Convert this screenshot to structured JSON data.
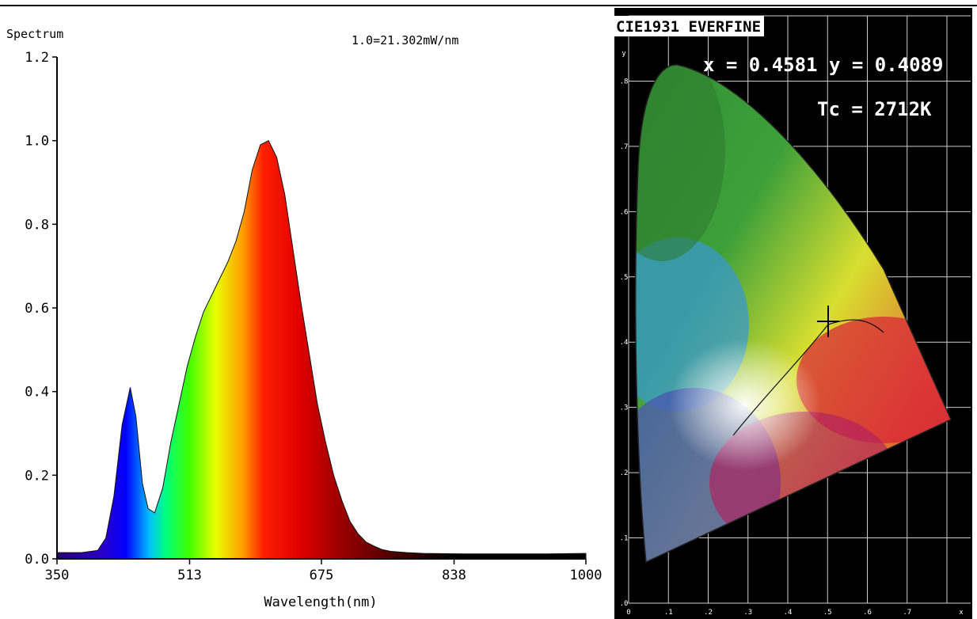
{
  "chart_data": [
    {
      "type": "area",
      "title": "Spectrum",
      "annotation": "1.0=21.302mW/nm",
      "xlabel": "Wavelength(nm)",
      "ylabel": "",
      "xlim": [
        350,
        1000
      ],
      "ylim": [
        0,
        1.2
      ],
      "x_ticks": [
        "350",
        "513",
        "675",
        "838",
        "1000"
      ],
      "y_ticks": [
        "0.0",
        "0.2",
        "0.4",
        "0.6",
        "0.8",
        "1.0",
        "1.2"
      ],
      "x": [
        350,
        380,
        400,
        410,
        420,
        430,
        440,
        447,
        455,
        462,
        470,
        480,
        490,
        500,
        510,
        520,
        530,
        540,
        550,
        560,
        570,
        580,
        590,
        600,
        610,
        620,
        630,
        640,
        650,
        660,
        670,
        680,
        690,
        700,
        710,
        720,
        730,
        740,
        750,
        760,
        780,
        800,
        850,
        900,
        950,
        1000
      ],
      "y": [
        0.015,
        0.015,
        0.02,
        0.05,
        0.15,
        0.32,
        0.41,
        0.34,
        0.18,
        0.12,
        0.11,
        0.17,
        0.28,
        0.37,
        0.46,
        0.53,
        0.59,
        0.63,
        0.67,
        0.71,
        0.76,
        0.83,
        0.93,
        0.99,
        1.0,
        0.96,
        0.87,
        0.74,
        0.61,
        0.49,
        0.37,
        0.28,
        0.2,
        0.14,
        0.09,
        0.06,
        0.04,
        0.03,
        0.022,
        0.018,
        0.015,
        0.013,
        0.012,
        0.012,
        0.012,
        0.013
      ]
    },
    {
      "type": "scatter",
      "title": "CIE1931 EVERFINE",
      "point_x": 0.4581,
      "point_y": 0.4089,
      "tc": "Tc = 2712K",
      "readout": "x = 0.4581 y = 0.4089",
      "x_ticks": [
        "0",
        ".1",
        ".2",
        ".3",
        ".4",
        ".5",
        ".6",
        ".7",
        "x"
      ],
      "y_ticks": [
        ".0",
        ".1",
        ".2",
        ".3",
        ".4",
        ".5",
        ".6",
        ".7",
        ".8",
        "y"
      ]
    }
  ]
}
